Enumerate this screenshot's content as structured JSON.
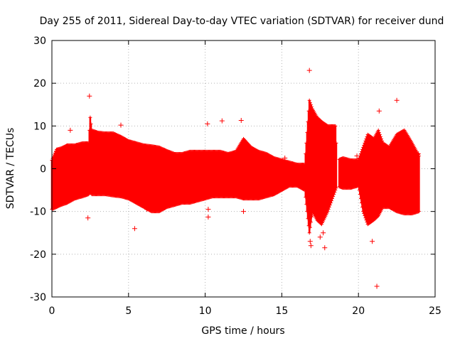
{
  "chart_data": {
    "type": "scatter",
    "title": "Day 255 of 2011, Sidereal Day-to-day VTEC variation (SDTVAR) for receiver dund",
    "xlabel": "GPS time / hours",
    "ylabel": "SDTVAR / TECUs",
    "xlim": [
      0,
      25
    ],
    "ylim": [
      -30,
      30
    ],
    "xticks": [
      0,
      5,
      10,
      15,
      20,
      25
    ],
    "yticks": [
      -30,
      -20,
      -10,
      0,
      10,
      20,
      30
    ],
    "xtick_labels": [
      "0",
      "5",
      "10",
      "15",
      "20",
      "25"
    ],
    "ytick_labels": [
      "-30",
      "-20",
      "-10",
      "0",
      "10",
      "20",
      "30"
    ],
    "grid": true,
    "series_color": "#ff0000",
    "marker": "plus",
    "envelope": {
      "x": [
        0.0,
        0.3,
        0.6,
        1.0,
        1.5,
        2.0,
        2.4,
        2.5,
        2.6,
        3.0,
        3.5,
        4.0,
        4.5,
        5.0,
        5.5,
        6.0,
        6.5,
        7.0,
        7.5,
        8.0,
        8.5,
        9.0,
        9.5,
        10.0,
        10.5,
        11.0,
        11.5,
        12.0,
        12.5,
        13.0,
        13.5,
        14.0,
        14.5,
        15.0,
        15.5,
        16.0,
        16.5,
        16.8,
        17.0,
        17.3,
        17.6,
        18.0,
        18.5,
        18.6,
        19.0,
        19.5,
        20.0,
        20.3,
        20.6,
        21.0,
        21.3,
        21.6,
        22.0,
        22.5,
        23.0,
        23.5,
        23.95
      ],
      "upper": [
        2.0,
        4.5,
        4.8,
        5.5,
        5.5,
        6.0,
        6.0,
        12.0,
        9.0,
        8.5,
        8.3,
        8.3,
        7.5,
        6.5,
        6.0,
        5.5,
        5.3,
        5.0,
        4.2,
        3.5,
        3.5,
        4.0,
        4.0,
        4.0,
        4.0,
        4.0,
        3.5,
        4.0,
        7.0,
        5.0,
        4.0,
        3.5,
        2.5,
        2.0,
        1.5,
        1.0,
        1.0,
        16.0,
        14.0,
        12.0,
        11.0,
        10.0,
        10.0,
        2.0,
        2.5,
        2.0,
        2.0,
        5.0,
        8.0,
        7.0,
        9.0,
        6.0,
        5.0,
        8.0,
        9.0,
        6.0,
        3.0
      ],
      "lower": [
        -9.5,
        -9.0,
        -8.5,
        -8.0,
        -7.0,
        -6.5,
        -6.0,
        -5.5,
        -6.0,
        -6.0,
        -6.0,
        -6.3,
        -6.5,
        -7.0,
        -8.0,
        -9.0,
        -10.0,
        -10.0,
        -9.0,
        -8.5,
        -8.0,
        -8.0,
        -7.5,
        -7.0,
        -6.5,
        -6.5,
        -6.5,
        -6.5,
        -7.0,
        -7.0,
        -7.0,
        -6.5,
        -6.0,
        -5.0,
        -4.0,
        -4.0,
        -5.0,
        -15.0,
        -10.0,
        -12.0,
        -13.0,
        -10.0,
        -5.0,
        -4.0,
        -4.5,
        -4.5,
        -4.0,
        -10.0,
        -13.0,
        -12.0,
        -11.0,
        -9.0,
        -9.0,
        -10.0,
        -10.5,
        -10.5,
        -10.0
      ]
    },
    "outliers": {
      "x": [
        2.35,
        2.45,
        1.2,
        4.5,
        5.4,
        10.15,
        10.2,
        10.2,
        11.1,
        12.35,
        12.5,
        16.8,
        16.85,
        16.9,
        17.5,
        17.7,
        17.8,
        21.2,
        21.35,
        22.5,
        23.9,
        0.3,
        3.0,
        6.2,
        15.2,
        19.9,
        20.9
      ],
      "y": [
        -11.5,
        17.0,
        9.0,
        10.2,
        -14.0,
        10.5,
        -9.5,
        -11.3,
        11.2,
        11.3,
        -10.0,
        23.0,
        -17.0,
        -18.0,
        -16.0,
        -15.0,
        -18.5,
        -27.5,
        13.5,
        16.0,
        3.5,
        4.0,
        7.5,
        -9.5,
        2.5,
        3.0,
        -17.0
      ]
    }
  }
}
